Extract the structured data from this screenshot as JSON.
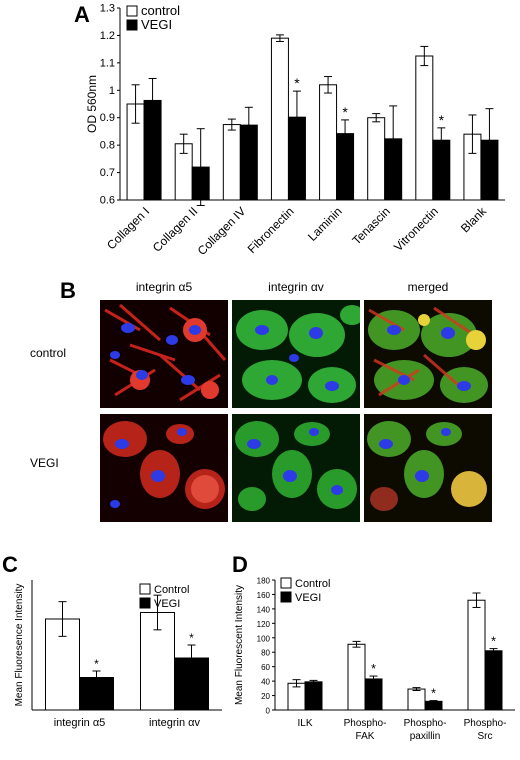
{
  "panels": {
    "A": {
      "letter": "A",
      "chart_data": {
        "type": "bar",
        "ylabel": "OD 560nm",
        "ylim": [
          0.6,
          1.3
        ],
        "yticks": [
          "0.6",
          "0.7",
          "0.8",
          "0.9",
          "1",
          "1.1",
          "1.2",
          "1.3"
        ],
        "categories": [
          "Collagen I",
          "Collagen II",
          "Collagen IV",
          "Fibronectin",
          "Laminin",
          "Tenascin",
          "Vitronectin",
          "Blank"
        ],
        "series": [
          {
            "name": "control",
            "color": "#ffffff",
            "values": [
              0.95,
              0.805,
              0.875,
              1.19,
              1.02,
              0.9,
              1.125,
              0.84
            ],
            "errors": [
              0.07,
              0.035,
              0.02,
              0.012,
              0.03,
              0.015,
              0.035,
              0.07
            ]
          },
          {
            "name": "VEGI",
            "color": "#000000",
            "values": [
              0.963,
              0.72,
              0.873,
              0.902,
              0.842,
              0.823,
              0.818,
              0.818
            ],
            "errors": [
              0.08,
              0.14,
              0.065,
              0.095,
              0.05,
              0.12,
              0.045,
              0.115
            ]
          }
        ],
        "significant": [
          "",
          "",
          "",
          "*",
          "*",
          "",
          "*",
          ""
        ],
        "legend": "top-left"
      }
    },
    "B": {
      "letter": "B",
      "columns": [
        "integrin α5",
        "integrin αv",
        "merged"
      ],
      "rows": [
        "control",
        "VEGI"
      ]
    },
    "C": {
      "letter": "C",
      "chart_data": {
        "type": "bar",
        "ylabel": "Mean Fluoresence Intensity",
        "ylim": [
          0,
          60
        ],
        "categories": [
          "integrin α5",
          "integrin αv"
        ],
        "series": [
          {
            "name": "Control",
            "color": "#ffffff",
            "values": [
              42,
              45
            ],
            "errors": [
              8,
              8
            ]
          },
          {
            "name": "VEGI",
            "color": "#000000",
            "values": [
              15,
              24
            ],
            "errors": [
              3,
              6
            ]
          }
        ],
        "significant": [
          "*",
          "*"
        ],
        "legend": "top-right"
      }
    },
    "D": {
      "letter": "D",
      "chart_data": {
        "type": "bar",
        "ylabel": "Mean Fluorescent Intensity",
        "ylim": [
          0,
          180
        ],
        "yticks": [
          "0",
          "20",
          "40",
          "60",
          "80",
          "100",
          "120",
          "140",
          "160",
          "180"
        ],
        "categories": [
          "ILK",
          "Phospho-FAK",
          "Phospho-paxillin",
          "Phospho-Src"
        ],
        "category_lines": [
          [
            "ILK"
          ],
          [
            "Phospho-",
            "FAK"
          ],
          [
            "Phospho-",
            "paxillin"
          ],
          [
            "Phospho-",
            "Src"
          ]
        ],
        "series": [
          {
            "name": "Control",
            "color": "#ffffff",
            "values": [
              37,
              91,
              29,
              152
            ],
            "errors": [
              5,
              4,
              2,
              10
            ]
          },
          {
            "name": "VEGI",
            "color": "#000000",
            "values": [
              39,
              43,
              12,
              82
            ],
            "errors": [
              2,
              4,
              1,
              3
            ]
          }
        ],
        "significant": [
          "",
          "*",
          "*",
          "*"
        ],
        "legend": "top-left"
      }
    }
  }
}
